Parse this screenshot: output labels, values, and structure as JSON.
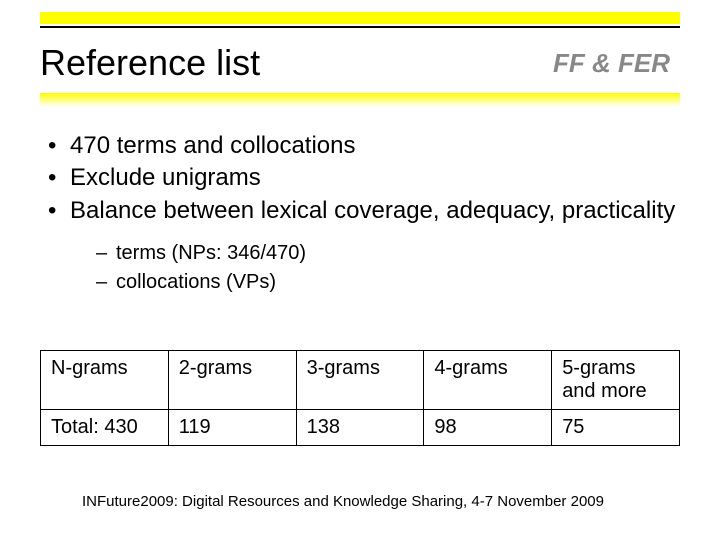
{
  "header": {
    "title": "Reference list",
    "subtitle": "FF & FER",
    "accent_color": "#ffff00",
    "rule_color": "#000000",
    "gradient_from": "#ffff00",
    "gradient_to": "#ffffff"
  },
  "bullets": {
    "items": [
      "470 terms and collocations",
      "Exclude unigrams",
      "Balance between lexical coverage, adequacy, practicality"
    ],
    "sub_items": [
      "terms (NPs: 346/470)",
      "collocations (VPs)"
    ],
    "main_fontsize": 24,
    "sub_fontsize": 20
  },
  "table": {
    "type": "table",
    "columns": [
      "N-grams",
      "2-grams",
      "3-grams",
      "4-grams",
      "5-grams and more"
    ],
    "rows": [
      [
        "Total: 430",
        "119",
        "138",
        "98",
        "75"
      ]
    ],
    "border_color": "#000000",
    "cell_fontsize": 20
  },
  "footer": {
    "text": "INFuture2009: Digital Resources and Knowledge Sharing, 4-7 November 2009",
    "fontsize": 15
  }
}
